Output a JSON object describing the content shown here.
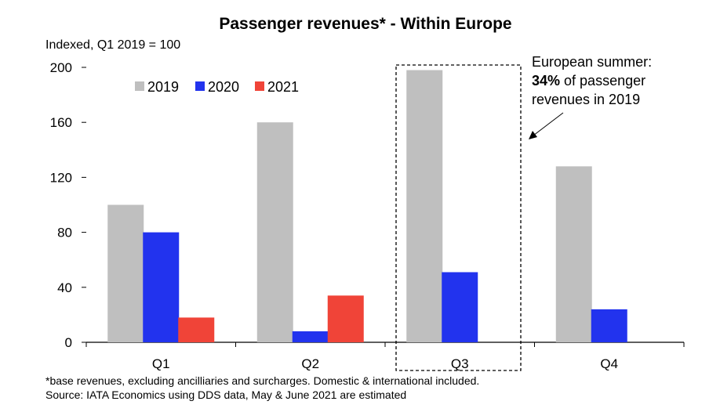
{
  "chart_data": {
    "type": "bar",
    "title": "Passenger revenues* - Within Europe",
    "ylabel": "Indexed, Q1 2019 = 100",
    "xlabel": "",
    "ylim": [
      0,
      200
    ],
    "yticks": [
      0,
      40,
      80,
      120,
      160,
      200
    ],
    "categories": [
      "Q1",
      "Q2",
      "Q3",
      "Q4"
    ],
    "series": [
      {
        "name": "2019",
        "color": "#bfbfbf",
        "values": [
          100,
          160,
          198,
          128
        ]
      },
      {
        "name": "2020",
        "color": "#2233ee",
        "values": [
          80,
          8,
          51,
          24
        ]
      },
      {
        "name": "2021",
        "color": "#f04438",
        "values": [
          18,
          34,
          null,
          null
        ]
      }
    ],
    "grid": false,
    "legend": "top-left",
    "annotation": {
      "line1": "European summer:",
      "bold": "34%",
      "line2_rest": " of passenger",
      "line3": "revenues in 2019",
      "highlight_category": "Q3"
    }
  },
  "footnotes": {
    "note": "*base revenues, excluding ancilliaries and surcharges. Domestic & international included.",
    "source": "Source: IATA Economics using DDS data, May & June 2021 are estimated"
  }
}
